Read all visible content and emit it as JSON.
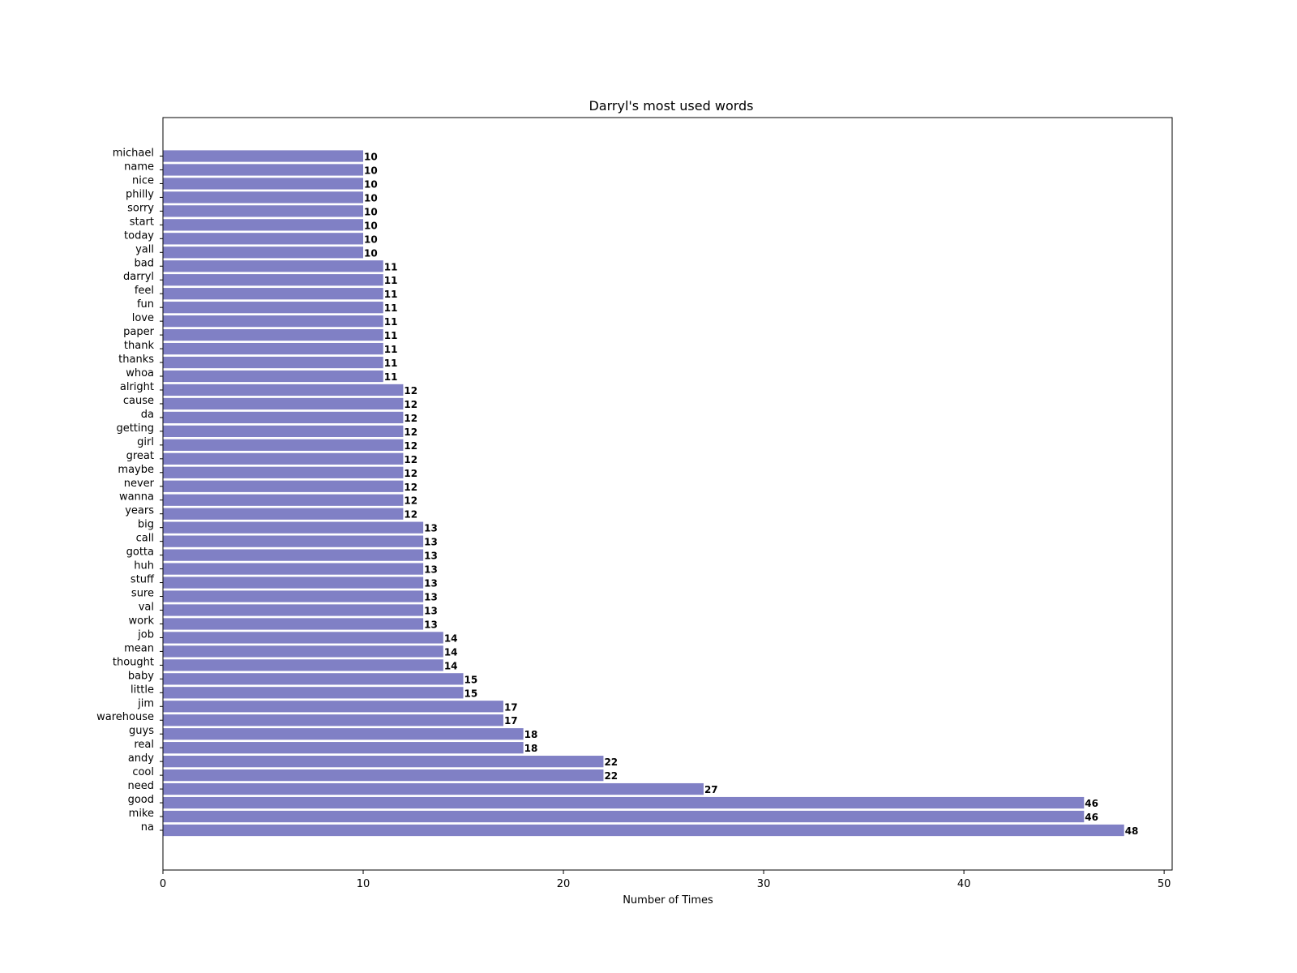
{
  "chart_data": {
    "type": "bar",
    "orientation": "horizontal",
    "title": "Darryl's most used words",
    "xlabel": "Number of Times",
    "ylabel": "",
    "xlim": [
      0,
      50.4
    ],
    "xticks": [
      0,
      10,
      20,
      30,
      40,
      50
    ],
    "grid": false,
    "bar_color": "#8080c5",
    "categories": [
      "michael",
      "name",
      "nice",
      "philly",
      "sorry",
      "start",
      "today",
      "yall",
      "bad",
      "darryl",
      "feel",
      "fun",
      "love",
      "paper",
      "thank",
      "thanks",
      "whoa",
      "alright",
      "cause",
      "da",
      "getting",
      "girl",
      "great",
      "maybe",
      "never",
      "wanna",
      "years",
      "big",
      "call",
      "gotta",
      "huh",
      "stuff",
      "sure",
      "val",
      "work",
      "job",
      "mean",
      "thought",
      "baby",
      "little",
      "jim",
      "warehouse",
      "guys",
      "real",
      "andy",
      "cool",
      "need",
      "good",
      "mike",
      "na"
    ],
    "values": [
      10,
      10,
      10,
      10,
      10,
      10,
      10,
      10,
      11,
      11,
      11,
      11,
      11,
      11,
      11,
      11,
      11,
      12,
      12,
      12,
      12,
      12,
      12,
      12,
      12,
      12,
      12,
      13,
      13,
      13,
      13,
      13,
      13,
      13,
      13,
      14,
      14,
      14,
      15,
      15,
      17,
      17,
      18,
      18,
      22,
      22,
      27,
      46,
      46,
      48
    ]
  }
}
